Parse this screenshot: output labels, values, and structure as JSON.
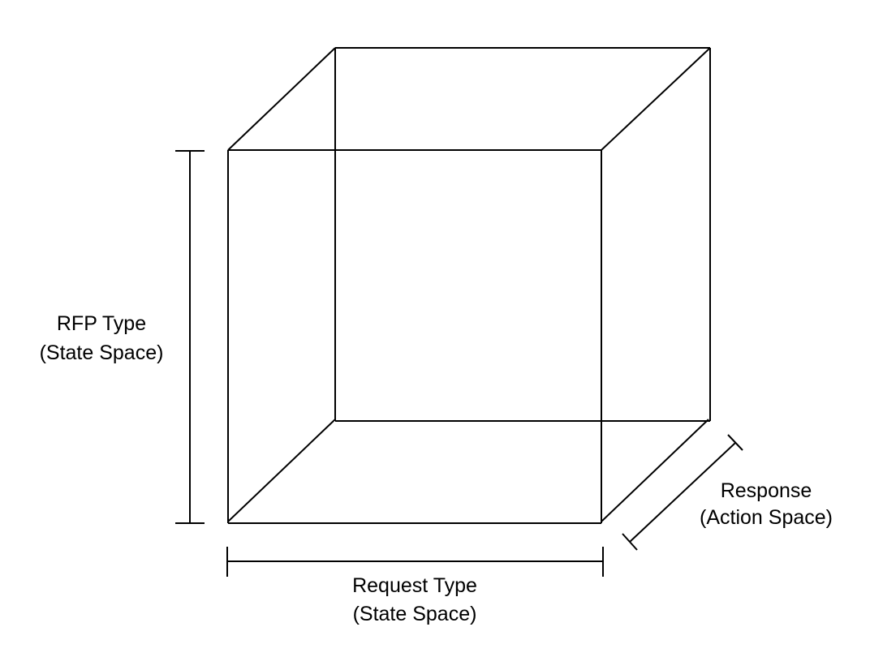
{
  "axes": {
    "vertical": {
      "name": "RFP Type",
      "space": "(State Space)"
    },
    "horizontal": {
      "name": "Request Type",
      "space": "(State Space)"
    },
    "depth": {
      "name": "Response",
      "space": "(Action Space)"
    }
  }
}
